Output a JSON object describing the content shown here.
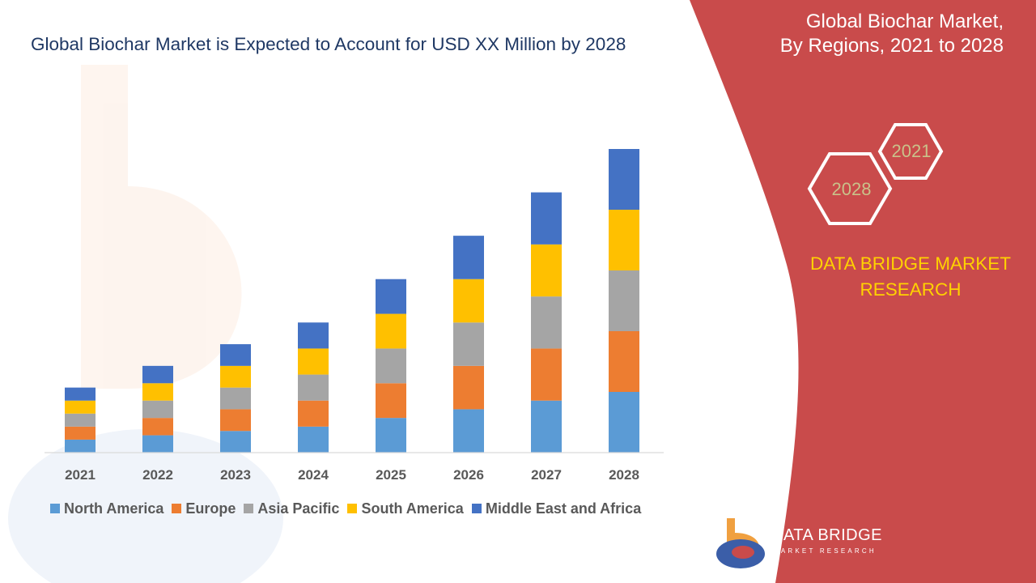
{
  "header": {
    "chart_title": "Global Biochar Market is Expected to Account for USD XX Million by 2028"
  },
  "side_panel": {
    "title_line1": "Global Biochar Market,",
    "title_line2": "By Regions, 2021 to 2028",
    "hex_left": "2028",
    "hex_right": "2021",
    "brand_line1": "DATA BRIDGE MARKET",
    "brand_line2": "RESEARCH",
    "logo_name": "DATA BRIDGE",
    "logo_tagline": "MARKET RESEARCH",
    "logo_icon": "data-bridge-logo-icon"
  },
  "colors": {
    "panel_red": "#c94b4b",
    "brand_yellow": "#ffd200",
    "title_navy": "#1f3864",
    "hex_label": "#c9c28a"
  },
  "chart_data": {
    "type": "bar",
    "stacked": true,
    "title": "Global Biochar Market is Expected to Account for USD XX Million by 2028",
    "xlabel": "",
    "ylabel": "",
    "categories": [
      "2021",
      "2022",
      "2023",
      "2024",
      "2025",
      "2026",
      "2027",
      "2028"
    ],
    "series": [
      {
        "name": "North America",
        "color": "#5b9bd5",
        "values": [
          3.0,
          4.0,
          5.0,
          6.0,
          8.0,
          10.0,
          12.0,
          14.0
        ]
      },
      {
        "name": "Europe",
        "color": "#ed7d31",
        "values": [
          3.0,
          4.0,
          5.0,
          6.0,
          8.0,
          10.0,
          12.0,
          14.0
        ]
      },
      {
        "name": "Asia Pacific",
        "color": "#a5a5a5",
        "values": [
          3.0,
          4.0,
          5.0,
          6.0,
          8.0,
          10.0,
          12.0,
          14.0
        ]
      },
      {
        "name": "South America",
        "color": "#ffc000",
        "values": [
          3.0,
          4.0,
          5.0,
          6.0,
          8.0,
          10.0,
          12.0,
          14.0
        ]
      },
      {
        "name": "Middle East and Africa",
        "color": "#4472c4",
        "values": [
          3.0,
          4.0,
          5.0,
          6.0,
          8.0,
          10.0,
          12.0,
          14.0
        ]
      }
    ],
    "ylim": [
      0,
      70
    ],
    "grid": false,
    "legend_position": "bottom"
  }
}
